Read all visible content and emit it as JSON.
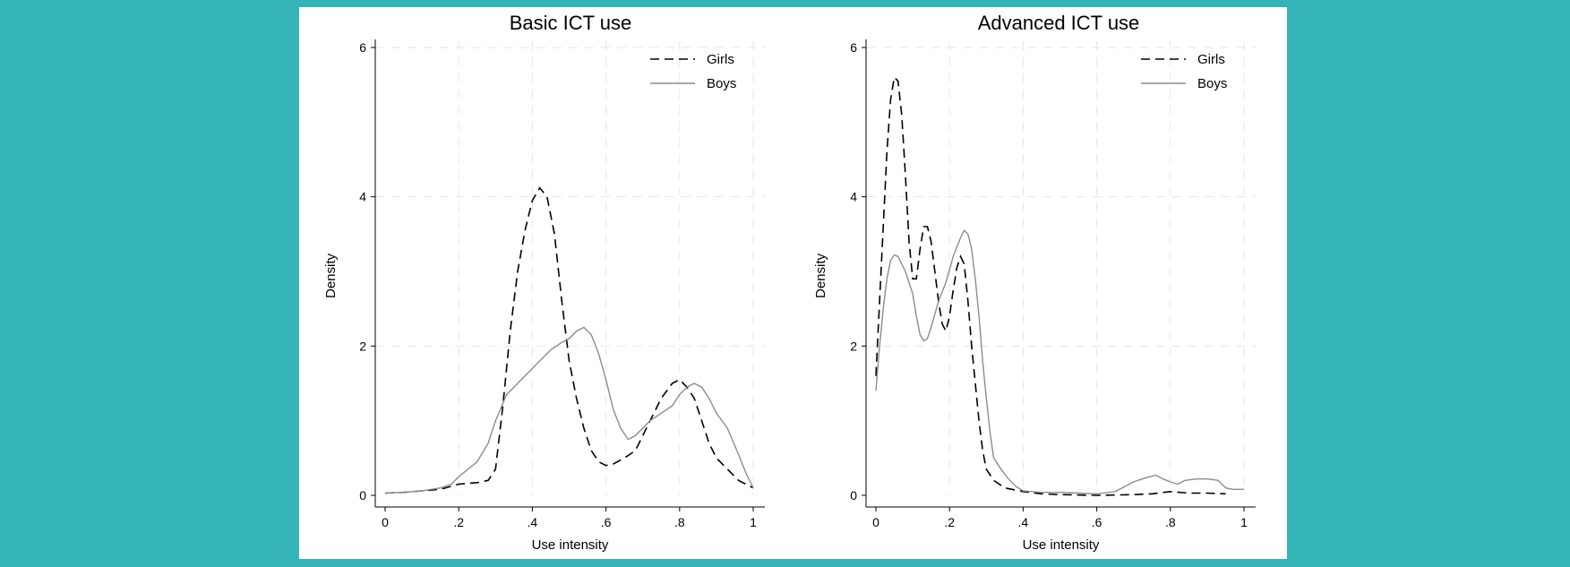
{
  "colors": {
    "page_background": "#35b5b7",
    "girls": "#000000",
    "boys": "#8c8c8c"
  },
  "chart_data": [
    {
      "type": "line",
      "title": "Basic ICT use",
      "xlabel": "Use intensity",
      "ylabel": "Density",
      "xlim": [
        0,
        1
      ],
      "ylim": [
        0,
        6
      ],
      "xticks": [
        {
          "v": 0,
          "label": "0"
        },
        {
          "v": 0.2,
          "label": ".2"
        },
        {
          "v": 0.4,
          "label": ".4"
        },
        {
          "v": 0.6,
          "label": ".6"
        },
        {
          "v": 0.8,
          "label": ".8"
        },
        {
          "v": 1,
          "label": "1"
        }
      ],
      "yticks": [
        {
          "v": 0,
          "label": "0"
        },
        {
          "v": 2,
          "label": "2"
        },
        {
          "v": 4,
          "label": "4"
        },
        {
          "v": 6,
          "label": "6"
        }
      ],
      "grid": true,
      "legend": "top-right",
      "series": [
        {
          "name": "Girls",
          "style": "dashed",
          "points": [
            [
              0,
              0.03
            ],
            [
              0.05,
              0.04
            ],
            [
              0.1,
              0.06
            ],
            [
              0.15,
              0.08
            ],
            [
              0.2,
              0.15
            ],
            [
              0.25,
              0.17
            ],
            [
              0.28,
              0.2
            ],
            [
              0.3,
              0.35
            ],
            [
              0.32,
              1.2
            ],
            [
              0.34,
              2.2
            ],
            [
              0.36,
              3.0
            ],
            [
              0.38,
              3.55
            ],
            [
              0.4,
              3.95
            ],
            [
              0.42,
              4.12
            ],
            [
              0.44,
              4.0
            ],
            [
              0.46,
              3.5
            ],
            [
              0.48,
              2.6
            ],
            [
              0.5,
              1.8
            ],
            [
              0.52,
              1.3
            ],
            [
              0.54,
              0.9
            ],
            [
              0.56,
              0.6
            ],
            [
              0.58,
              0.45
            ],
            [
              0.6,
              0.4
            ],
            [
              0.62,
              0.42
            ],
            [
              0.65,
              0.5
            ],
            [
              0.68,
              0.6
            ],
            [
              0.7,
              0.8
            ],
            [
              0.72,
              1.0
            ],
            [
              0.75,
              1.3
            ],
            [
              0.78,
              1.5
            ],
            [
              0.8,
              1.55
            ],
            [
              0.82,
              1.45
            ],
            [
              0.84,
              1.3
            ],
            [
              0.86,
              1.0
            ],
            [
              0.88,
              0.7
            ],
            [
              0.9,
              0.5
            ],
            [
              0.93,
              0.35
            ],
            [
              0.96,
              0.2
            ],
            [
              1.0,
              0.1
            ]
          ]
        },
        {
          "name": "Boys",
          "style": "solid",
          "points": [
            [
              0,
              0.03
            ],
            [
              0.05,
              0.04
            ],
            [
              0.1,
              0.06
            ],
            [
              0.15,
              0.1
            ],
            [
              0.18,
              0.15
            ],
            [
              0.2,
              0.25
            ],
            [
              0.25,
              0.45
            ],
            [
              0.28,
              0.7
            ],
            [
              0.3,
              1.0
            ],
            [
              0.33,
              1.35
            ],
            [
              0.36,
              1.5
            ],
            [
              0.39,
              1.65
            ],
            [
              0.42,
              1.8
            ],
            [
              0.45,
              1.95
            ],
            [
              0.48,
              2.05
            ],
            [
              0.5,
              2.1
            ],
            [
              0.52,
              2.2
            ],
            [
              0.54,
              2.25
            ],
            [
              0.56,
              2.15
            ],
            [
              0.58,
              1.9
            ],
            [
              0.6,
              1.55
            ],
            [
              0.62,
              1.15
            ],
            [
              0.64,
              0.9
            ],
            [
              0.66,
              0.75
            ],
            [
              0.68,
              0.8
            ],
            [
              0.7,
              0.9
            ],
            [
              0.72,
              1.0
            ],
            [
              0.75,
              1.1
            ],
            [
              0.78,
              1.2
            ],
            [
              0.8,
              1.35
            ],
            [
              0.82,
              1.45
            ],
            [
              0.84,
              1.5
            ],
            [
              0.86,
              1.45
            ],
            [
              0.88,
              1.3
            ],
            [
              0.9,
              1.1
            ],
            [
              0.93,
              0.9
            ],
            [
              0.96,
              0.55
            ],
            [
              0.98,
              0.3
            ],
            [
              1.0,
              0.1
            ]
          ]
        }
      ]
    },
    {
      "type": "line",
      "title": "Advanced ICT use",
      "xlabel": "Use intensity",
      "ylabel": "Density",
      "xlim": [
        0,
        1
      ],
      "ylim": [
        0,
        6
      ],
      "xticks": [
        {
          "v": 0,
          "label": "0"
        },
        {
          "v": 0.2,
          "label": ".2"
        },
        {
          "v": 0.4,
          "label": ".4"
        },
        {
          "v": 0.6,
          "label": ".6"
        },
        {
          "v": 0.8,
          "label": ".8"
        },
        {
          "v": 1,
          "label": "1"
        }
      ],
      "yticks": [
        {
          "v": 0,
          "label": "0"
        },
        {
          "v": 2,
          "label": "2"
        },
        {
          "v": 4,
          "label": "4"
        },
        {
          "v": 6,
          "label": "6"
        }
      ],
      "grid": true,
      "legend": "top-right",
      "series": [
        {
          "name": "Girls",
          "style": "dashed",
          "points": [
            [
              0,
              1.6
            ],
            [
              0.01,
              2.6
            ],
            [
              0.02,
              3.6
            ],
            [
              0.03,
              4.6
            ],
            [
              0.04,
              5.3
            ],
            [
              0.05,
              5.6
            ],
            [
              0.06,
              5.55
            ],
            [
              0.07,
              5.1
            ],
            [
              0.08,
              4.3
            ],
            [
              0.09,
              3.4
            ],
            [
              0.1,
              2.9
            ],
            [
              0.11,
              2.9
            ],
            [
              0.12,
              3.3
            ],
            [
              0.13,
              3.6
            ],
            [
              0.14,
              3.6
            ],
            [
              0.15,
              3.4
            ],
            [
              0.16,
              3.0
            ],
            [
              0.17,
              2.6
            ],
            [
              0.18,
              2.3
            ],
            [
              0.19,
              2.2
            ],
            [
              0.2,
              2.4
            ],
            [
              0.21,
              2.75
            ],
            [
              0.22,
              3.05
            ],
            [
              0.23,
              3.2
            ],
            [
              0.24,
              3.1
            ],
            [
              0.25,
              2.6
            ],
            [
              0.26,
              2.0
            ],
            [
              0.27,
              1.5
            ],
            [
              0.28,
              1.0
            ],
            [
              0.29,
              0.6
            ],
            [
              0.3,
              0.35
            ],
            [
              0.32,
              0.2
            ],
            [
              0.35,
              0.1
            ],
            [
              0.4,
              0.05
            ],
            [
              0.45,
              0.02
            ],
            [
              0.5,
              0.01
            ],
            [
              0.6,
              0.0
            ],
            [
              0.7,
              0.01
            ],
            [
              0.75,
              0.02
            ],
            [
              0.8,
              0.05
            ],
            [
              0.85,
              0.03
            ],
            [
              0.9,
              0.03
            ],
            [
              0.95,
              0.02
            ]
          ]
        },
        {
          "name": "Boys",
          "style": "solid",
          "points": [
            [
              0,
              1.4
            ],
            [
              0.01,
              2.0
            ],
            [
              0.02,
              2.5
            ],
            [
              0.03,
              2.9
            ],
            [
              0.04,
              3.15
            ],
            [
              0.05,
              3.22
            ],
            [
              0.06,
              3.2
            ],
            [
              0.08,
              3.0
            ],
            [
              0.1,
              2.7
            ],
            [
              0.11,
              2.4
            ],
            [
              0.12,
              2.15
            ],
            [
              0.13,
              2.07
            ],
            [
              0.14,
              2.1
            ],
            [
              0.15,
              2.25
            ],
            [
              0.17,
              2.6
            ],
            [
              0.19,
              2.85
            ],
            [
              0.21,
              3.2
            ],
            [
              0.23,
              3.45
            ],
            [
              0.24,
              3.55
            ],
            [
              0.25,
              3.5
            ],
            [
              0.26,
              3.3
            ],
            [
              0.27,
              2.9
            ],
            [
              0.28,
              2.4
            ],
            [
              0.29,
              1.8
            ],
            [
              0.3,
              1.3
            ],
            [
              0.31,
              0.85
            ],
            [
              0.32,
              0.5
            ],
            [
              0.34,
              0.35
            ],
            [
              0.36,
              0.22
            ],
            [
              0.38,
              0.12
            ],
            [
              0.4,
              0.06
            ],
            [
              0.45,
              0.04
            ],
            [
              0.5,
              0.04
            ],
            [
              0.55,
              0.03
            ],
            [
              0.6,
              0.02
            ],
            [
              0.65,
              0.05
            ],
            [
              0.7,
              0.18
            ],
            [
              0.73,
              0.23
            ],
            [
              0.76,
              0.27
            ],
            [
              0.78,
              0.22
            ],
            [
              0.8,
              0.18
            ],
            [
              0.82,
              0.15
            ],
            [
              0.84,
              0.2
            ],
            [
              0.87,
              0.22
            ],
            [
              0.9,
              0.22
            ],
            [
              0.93,
              0.2
            ],
            [
              0.95,
              0.1
            ],
            [
              0.97,
              0.08
            ],
            [
              1.0,
              0.08
            ]
          ]
        }
      ]
    }
  ]
}
